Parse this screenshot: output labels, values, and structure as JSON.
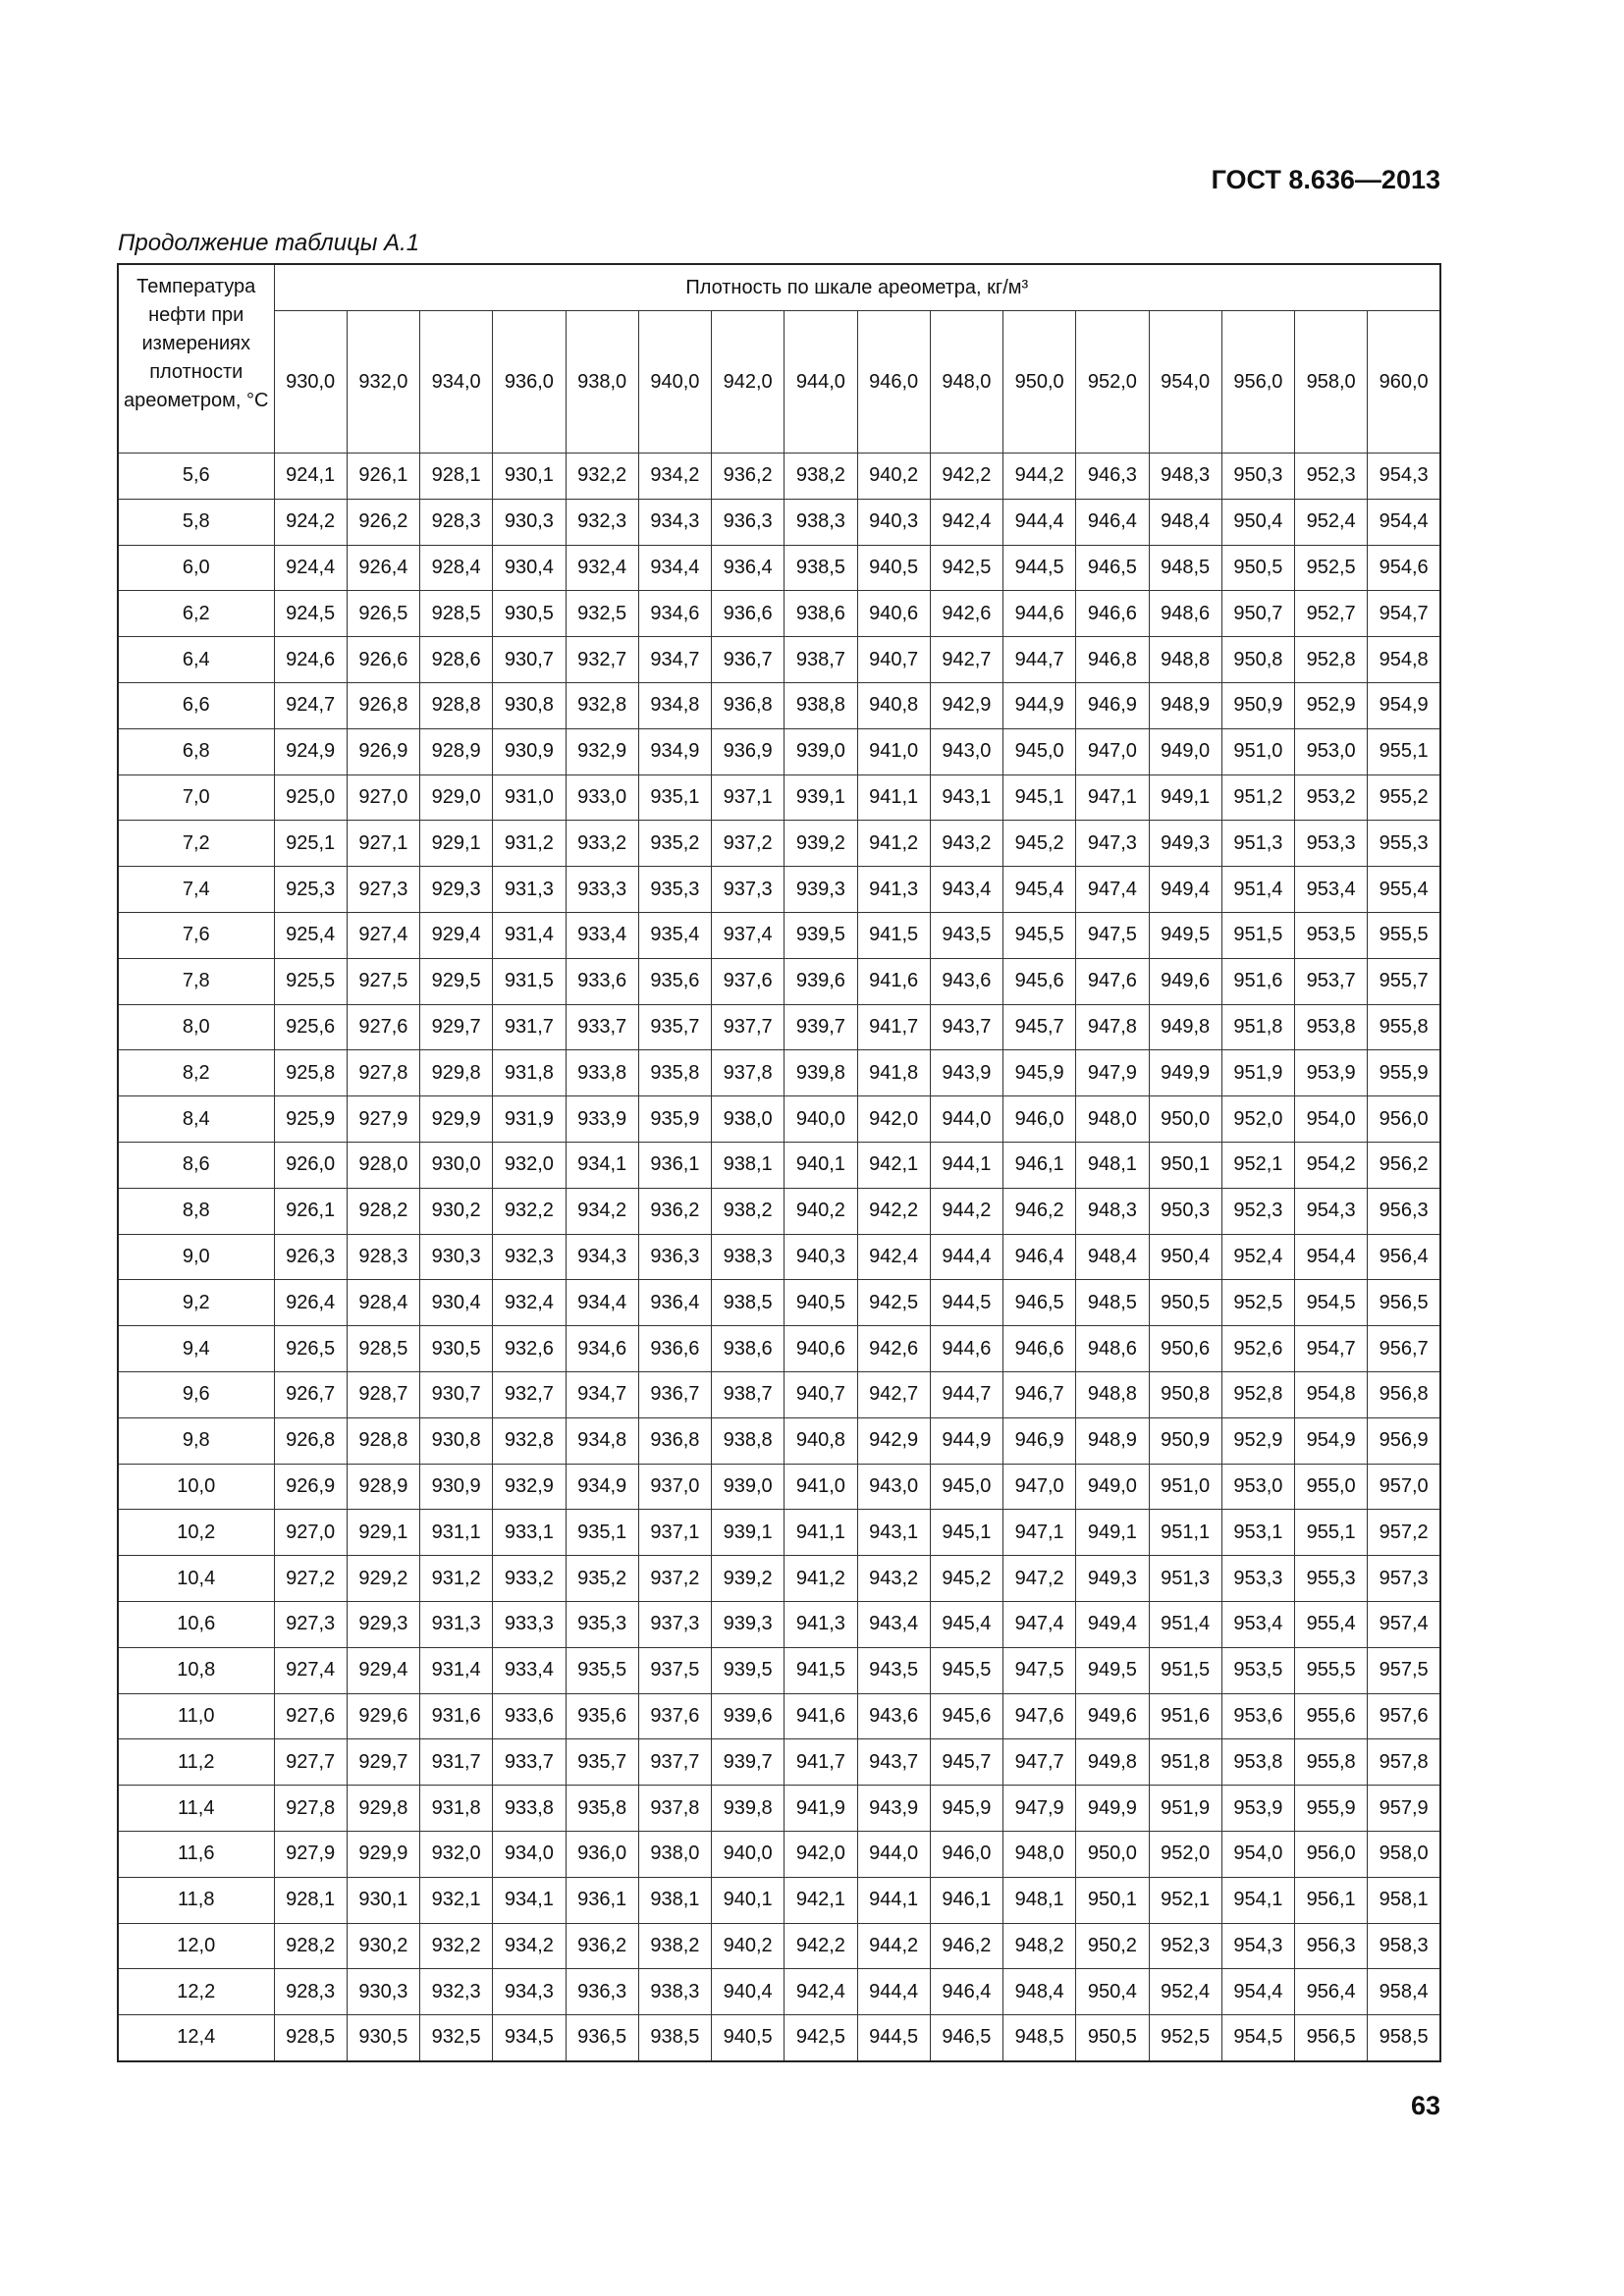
{
  "header": {
    "standard": "ГОСТ 8.636—2013"
  },
  "caption": "Продолжение таблицы А.1",
  "table": {
    "row_header": "Температура нефти при измерениях плотности ареометром, °С",
    "column_group": "Плотность по шкале ареометра, кг/м³",
    "columns": [
      "930,0",
      "932,0",
      "934,0",
      "936,0",
      "938,0",
      "940,0",
      "942,0",
      "944,0",
      "946,0",
      "948,0",
      "950,0",
      "952,0",
      "954,0",
      "956,0",
      "958,0",
      "960,0"
    ],
    "rows": [
      {
        "temperature": "5,6",
        "values": [
          "924,1",
          "926,1",
          "928,1",
          "930,1",
          "932,2",
          "934,2",
          "936,2",
          "938,2",
          "940,2",
          "942,2",
          "944,2",
          "946,3",
          "948,3",
          "950,3",
          "952,3",
          "954,3"
        ]
      },
      {
        "temperature": "5,8",
        "values": [
          "924,2",
          "926,2",
          "928,3",
          "930,3",
          "932,3",
          "934,3",
          "936,3",
          "938,3",
          "940,3",
          "942,4",
          "944,4",
          "946,4",
          "948,4",
          "950,4",
          "952,4",
          "954,4"
        ]
      },
      {
        "temperature": "6,0",
        "values": [
          "924,4",
          "926,4",
          "928,4",
          "930,4",
          "932,4",
          "934,4",
          "936,4",
          "938,5",
          "940,5",
          "942,5",
          "944,5",
          "946,5",
          "948,5",
          "950,5",
          "952,5",
          "954,6"
        ]
      },
      {
        "temperature": "6,2",
        "values": [
          "924,5",
          "926,5",
          "928,5",
          "930,5",
          "932,5",
          "934,6",
          "936,6",
          "938,6",
          "940,6",
          "942,6",
          "944,6",
          "946,6",
          "948,6",
          "950,7",
          "952,7",
          "954,7"
        ]
      },
      {
        "temperature": "6,4",
        "values": [
          "924,6",
          "926,6",
          "928,6",
          "930,7",
          "932,7",
          "934,7",
          "936,7",
          "938,7",
          "940,7",
          "942,7",
          "944,7",
          "946,8",
          "948,8",
          "950,8",
          "952,8",
          "954,8"
        ]
      },
      {
        "temperature": "6,6",
        "values": [
          "924,7",
          "926,8",
          "928,8",
          "930,8",
          "932,8",
          "934,8",
          "936,8",
          "938,8",
          "940,8",
          "942,9",
          "944,9",
          "946,9",
          "948,9",
          "950,9",
          "952,9",
          "954,9"
        ]
      },
      {
        "temperature": "6,8",
        "values": [
          "924,9",
          "926,9",
          "928,9",
          "930,9",
          "932,9",
          "934,9",
          "936,9",
          "939,0",
          "941,0",
          "943,0",
          "945,0",
          "947,0",
          "949,0",
          "951,0",
          "953,0",
          "955,1"
        ]
      },
      {
        "temperature": "7,0",
        "values": [
          "925,0",
          "927,0",
          "929,0",
          "931,0",
          "933,0",
          "935,1",
          "937,1",
          "939,1",
          "941,1",
          "943,1",
          "945,1",
          "947,1",
          "949,1",
          "951,2",
          "953,2",
          "955,2"
        ]
      },
      {
        "temperature": "7,2",
        "values": [
          "925,1",
          "927,1",
          "929,1",
          "931,2",
          "933,2",
          "935,2",
          "937,2",
          "939,2",
          "941,2",
          "943,2",
          "945,2",
          "947,3",
          "949,3",
          "951,3",
          "953,3",
          "955,3"
        ]
      },
      {
        "temperature": "7,4",
        "values": [
          "925,3",
          "927,3",
          "929,3",
          "931,3",
          "933,3",
          "935,3",
          "937,3",
          "939,3",
          "941,3",
          "943,4",
          "945,4",
          "947,4",
          "949,4",
          "951,4",
          "953,4",
          "955,4"
        ]
      },
      {
        "temperature": "7,6",
        "values": [
          "925,4",
          "927,4",
          "929,4",
          "931,4",
          "933,4",
          "935,4",
          "937,4",
          "939,5",
          "941,5",
          "943,5",
          "945,5",
          "947,5",
          "949,5",
          "951,5",
          "953,5",
          "955,5"
        ]
      },
      {
        "temperature": "7,8",
        "values": [
          "925,5",
          "927,5",
          "929,5",
          "931,5",
          "933,6",
          "935,6",
          "937,6",
          "939,6",
          "941,6",
          "943,6",
          "945,6",
          "947,6",
          "949,6",
          "951,6",
          "953,7",
          "955,7"
        ]
      },
      {
        "temperature": "8,0",
        "values": [
          "925,6",
          "927,6",
          "929,7",
          "931,7",
          "933,7",
          "935,7",
          "937,7",
          "939,7",
          "941,7",
          "943,7",
          "945,7",
          "947,8",
          "949,8",
          "951,8",
          "953,8",
          "955,8"
        ]
      },
      {
        "temperature": "8,2",
        "values": [
          "925,8",
          "927,8",
          "929,8",
          "931,8",
          "933,8",
          "935,8",
          "937,8",
          "939,8",
          "941,8",
          "943,9",
          "945,9",
          "947,9",
          "949,9",
          "951,9",
          "953,9",
          "955,9"
        ]
      },
      {
        "temperature": "8,4",
        "values": [
          "925,9",
          "927,9",
          "929,9",
          "931,9",
          "933,9",
          "935,9",
          "938,0",
          "940,0",
          "942,0",
          "944,0",
          "946,0",
          "948,0",
          "950,0",
          "952,0",
          "954,0",
          "956,0"
        ]
      },
      {
        "temperature": "8,6",
        "values": [
          "926,0",
          "928,0",
          "930,0",
          "932,0",
          "934,1",
          "936,1",
          "938,1",
          "940,1",
          "942,1",
          "944,1",
          "946,1",
          "948,1",
          "950,1",
          "952,1",
          "954,2",
          "956,2"
        ]
      },
      {
        "temperature": "8,8",
        "values": [
          "926,1",
          "928,2",
          "930,2",
          "932,2",
          "934,2",
          "936,2",
          "938,2",
          "940,2",
          "942,2",
          "944,2",
          "946,2",
          "948,3",
          "950,3",
          "952,3",
          "954,3",
          "956,3"
        ]
      },
      {
        "temperature": "9,0",
        "values": [
          "926,3",
          "928,3",
          "930,3",
          "932,3",
          "934,3",
          "936,3",
          "938,3",
          "940,3",
          "942,4",
          "944,4",
          "946,4",
          "948,4",
          "950,4",
          "952,4",
          "954,4",
          "956,4"
        ]
      },
      {
        "temperature": "9,2",
        "values": [
          "926,4",
          "928,4",
          "930,4",
          "932,4",
          "934,4",
          "936,4",
          "938,5",
          "940,5",
          "942,5",
          "944,5",
          "946,5",
          "948,5",
          "950,5",
          "952,5",
          "954,5",
          "956,5"
        ]
      },
      {
        "temperature": "9,4",
        "values": [
          "926,5",
          "928,5",
          "930,5",
          "932,6",
          "934,6",
          "936,6",
          "938,6",
          "940,6",
          "942,6",
          "944,6",
          "946,6",
          "948,6",
          "950,6",
          "952,6",
          "954,7",
          "956,7"
        ]
      },
      {
        "temperature": "9,6",
        "values": [
          "926,7",
          "928,7",
          "930,7",
          "932,7",
          "934,7",
          "936,7",
          "938,7",
          "940,7",
          "942,7",
          "944,7",
          "946,7",
          "948,8",
          "950,8",
          "952,8",
          "954,8",
          "956,8"
        ]
      },
      {
        "temperature": "9,8",
        "values": [
          "926,8",
          "928,8",
          "930,8",
          "932,8",
          "934,8",
          "936,8",
          "938,8",
          "940,8",
          "942,9",
          "944,9",
          "946,9",
          "948,9",
          "950,9",
          "952,9",
          "954,9",
          "956,9"
        ]
      },
      {
        "temperature": "10,0",
        "values": [
          "926,9",
          "928,9",
          "930,9",
          "932,9",
          "934,9",
          "937,0",
          "939,0",
          "941,0",
          "943,0",
          "945,0",
          "947,0",
          "949,0",
          "951,0",
          "953,0",
          "955,0",
          "957,0"
        ]
      },
      {
        "temperature": "10,2",
        "values": [
          "927,0",
          "929,1",
          "931,1",
          "933,1",
          "935,1",
          "937,1",
          "939,1",
          "941,1",
          "943,1",
          "945,1",
          "947,1",
          "949,1",
          "951,1",
          "953,1",
          "955,1",
          "957,2"
        ]
      },
      {
        "temperature": "10,4",
        "values": [
          "927,2",
          "929,2",
          "931,2",
          "933,2",
          "935,2",
          "937,2",
          "939,2",
          "941,2",
          "943,2",
          "945,2",
          "947,2",
          "949,3",
          "951,3",
          "953,3",
          "955,3",
          "957,3"
        ]
      },
      {
        "temperature": "10,6",
        "values": [
          "927,3",
          "929,3",
          "931,3",
          "933,3",
          "935,3",
          "937,3",
          "939,3",
          "941,3",
          "943,4",
          "945,4",
          "947,4",
          "949,4",
          "951,4",
          "953,4",
          "955,4",
          "957,4"
        ]
      },
      {
        "temperature": "10,8",
        "values": [
          "927,4",
          "929,4",
          "931,4",
          "933,4",
          "935,5",
          "937,5",
          "939,5",
          "941,5",
          "943,5",
          "945,5",
          "947,5",
          "949,5",
          "951,5",
          "953,5",
          "955,5",
          "957,5"
        ]
      },
      {
        "temperature": "11,0",
        "values": [
          "927,6",
          "929,6",
          "931,6",
          "933,6",
          "935,6",
          "937,6",
          "939,6",
          "941,6",
          "943,6",
          "945,6",
          "947,6",
          "949,6",
          "951,6",
          "953,6",
          "955,6",
          "957,6"
        ]
      },
      {
        "temperature": "11,2",
        "values": [
          "927,7",
          "929,7",
          "931,7",
          "933,7",
          "935,7",
          "937,7",
          "939,7",
          "941,7",
          "943,7",
          "945,7",
          "947,7",
          "949,8",
          "951,8",
          "953,8",
          "955,8",
          "957,8"
        ]
      },
      {
        "temperature": "11,4",
        "values": [
          "927,8",
          "929,8",
          "931,8",
          "933,8",
          "935,8",
          "937,8",
          "939,8",
          "941,9",
          "943,9",
          "945,9",
          "947,9",
          "949,9",
          "951,9",
          "953,9",
          "955,9",
          "957,9"
        ]
      },
      {
        "temperature": "11,6",
        "values": [
          "927,9",
          "929,9",
          "932,0",
          "934,0",
          "936,0",
          "938,0",
          "940,0",
          "942,0",
          "944,0",
          "946,0",
          "948,0",
          "950,0",
          "952,0",
          "954,0",
          "956,0",
          "958,0"
        ]
      },
      {
        "temperature": "11,8",
        "values": [
          "928,1",
          "930,1",
          "932,1",
          "934,1",
          "936,1",
          "938,1",
          "940,1",
          "942,1",
          "944,1",
          "946,1",
          "948,1",
          "950,1",
          "952,1",
          "954,1",
          "956,1",
          "958,1"
        ]
      },
      {
        "temperature": "12,0",
        "values": [
          "928,2",
          "930,2",
          "932,2",
          "934,2",
          "936,2",
          "938,2",
          "940,2",
          "942,2",
          "944,2",
          "946,2",
          "948,2",
          "950,2",
          "952,3",
          "954,3",
          "956,3",
          "958,3"
        ]
      },
      {
        "temperature": "12,2",
        "values": [
          "928,3",
          "930,3",
          "932,3",
          "934,3",
          "936,3",
          "938,3",
          "940,4",
          "942,4",
          "944,4",
          "946,4",
          "948,4",
          "950,4",
          "952,4",
          "954,4",
          "956,4",
          "958,4"
        ]
      },
      {
        "temperature": "12,4",
        "values": [
          "928,5",
          "930,5",
          "932,5",
          "934,5",
          "936,5",
          "938,5",
          "940,5",
          "942,5",
          "944,5",
          "946,5",
          "948,5",
          "950,5",
          "952,5",
          "954,5",
          "956,5",
          "958,5"
        ]
      }
    ]
  },
  "footer": {
    "page_number": "63"
  }
}
